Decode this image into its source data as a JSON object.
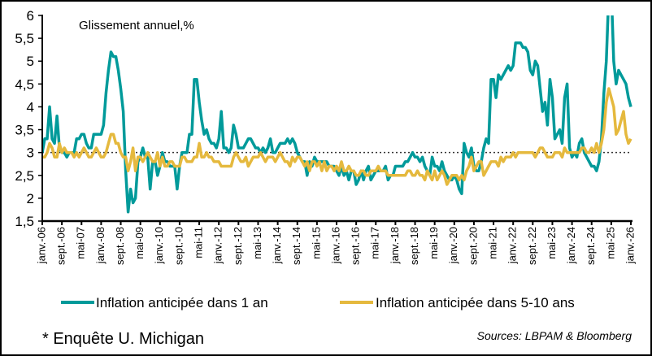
{
  "chart_data": {
    "type": "line",
    "title": "Glissement annuel,%",
    "xlabel": "",
    "ylabel": "",
    "ylim": [
      1.5,
      6
    ],
    "yticks": [
      "1,5",
      "2",
      "2,5",
      "3",
      "3,5",
      "4",
      "4,5",
      "5",
      "5,5",
      "6"
    ],
    "xlim": [
      "2006-01",
      "2026-01"
    ],
    "xtick_labels": [
      "janv.-06",
      "sept.-06",
      "mai-07",
      "janv.-08",
      "sept.-08",
      "mai-09",
      "janv.-10",
      "sept.-10",
      "mai-11",
      "janv.-12",
      "sept.-12",
      "mai-13",
      "janv.-14",
      "sept.-14",
      "mai-15",
      "janv.-16",
      "sept.-16",
      "mai-17",
      "janv.-18",
      "sept.-18",
      "mai-19",
      "janv.-20",
      "sept.-20",
      "mai-21",
      "janv.-22",
      "sept.-22",
      "mai-23",
      "janv.-24",
      "sept.-24",
      "mai-25",
      "janv.-26"
    ],
    "reference_line": 3,
    "grid": false,
    "legend_position": "bottom",
    "frequency": "monthly",
    "series": [
      {
        "name": "Inflation anticipée dans 1 an",
        "color": "#009a9a",
        "values": [
          3.0,
          3.3,
          3.3,
          4.0,
          3.3,
          3.2,
          3.8,
          3.1,
          3.0,
          3.0,
          2.9,
          3.0,
          3.0,
          3.0,
          3.3,
          3.3,
          3.4,
          3.4,
          3.2,
          3.1,
          3.1,
          3.4,
          3.4,
          3.4,
          3.4,
          3.6,
          4.3,
          4.8,
          5.2,
          5.1,
          5.1,
          4.8,
          4.4,
          3.9,
          2.6,
          1.7,
          2.2,
          1.9,
          2.0,
          2.8,
          2.9,
          3.1,
          2.9,
          2.9,
          2.2,
          2.8,
          2.8,
          2.5,
          2.7,
          3.0,
          2.8,
          2.8,
          2.7,
          2.7,
          2.7,
          2.2,
          2.7,
          3.0,
          3.0,
          3.0,
          3.4,
          3.4,
          4.6,
          4.6,
          4.1,
          3.7,
          3.4,
          3.5,
          3.3,
          3.2,
          3.2,
          3.1,
          3.3,
          3.9,
          3.1,
          3.1,
          3.0,
          3.1,
          3.6,
          3.4,
          3.1,
          3.1,
          3.1,
          3.2,
          3.3,
          3.3,
          3.2,
          3.1,
          3.1,
          3.0,
          3.1,
          3.0,
          3.1,
          3.3,
          3.0,
          3.0,
          3.1,
          3.2,
          3.2,
          3.2,
          3.3,
          3.2,
          3.3,
          3.2,
          3.0,
          2.9,
          2.8,
          2.8,
          2.5,
          2.8,
          2.7,
          2.9,
          2.8,
          2.8,
          2.8,
          2.8,
          2.8,
          2.7,
          2.7,
          2.7,
          2.6,
          2.5,
          2.7,
          2.5,
          2.6,
          2.4,
          2.6,
          2.6,
          2.3,
          2.4,
          2.6,
          2.4,
          2.6,
          2.7,
          2.4,
          2.5,
          2.6,
          2.6,
          2.6,
          2.6,
          2.7,
          2.4,
          2.5,
          2.5,
          2.7,
          2.7,
          2.7,
          2.7,
          2.8,
          2.8,
          2.9,
          3.0,
          2.9,
          2.9,
          2.8,
          2.9,
          2.7,
          2.6,
          2.5,
          2.9,
          2.7,
          2.7,
          2.6,
          2.8,
          2.6,
          2.5,
          2.4,
          2.4,
          2.5,
          2.4,
          2.2,
          2.1,
          3.2,
          3.0,
          2.9,
          3.1,
          2.7,
          2.6,
          2.6,
          2.8,
          3.1,
          3.3,
          3.2,
          4.6,
          4.6,
          4.2,
          4.7,
          4.6,
          4.7,
          4.8,
          4.9,
          4.8,
          4.9,
          5.4,
          5.4,
          5.4,
          5.3,
          5.3,
          5.2,
          4.8,
          4.7,
          5.0,
          4.9,
          4.4,
          3.9,
          4.1,
          3.6,
          4.6,
          4.2,
          3.3,
          3.4,
          3.5,
          3.2,
          4.2,
          4.5,
          3.1,
          2.9,
          3.0,
          2.9,
          3.2,
          3.3,
          3.0,
          2.9,
          2.8,
          2.7,
          2.7,
          2.6,
          2.8,
          3.3,
          4.3,
          5.0,
          6.5,
          6.6,
          5.0,
          4.5,
          4.8,
          4.7,
          4.6,
          4.5,
          4.2,
          4.0
        ]
      },
      {
        "name": "Inflation anticipée dans 5-10 ans",
        "color": "#e5b93e",
        "values": [
          2.9,
          2.9,
          3.0,
          3.2,
          3.1,
          2.9,
          2.9,
          3.2,
          3.0,
          3.1,
          3.0,
          3.0,
          3.0,
          2.9,
          3.0,
          2.9,
          3.0,
          3.1,
          3.0,
          2.9,
          2.9,
          3.0,
          3.1,
          3.0,
          2.9,
          2.9,
          3.0,
          3.2,
          3.4,
          3.4,
          3.2,
          3.2,
          3.0,
          2.9,
          2.9,
          2.6,
          2.8,
          3.1,
          2.6,
          2.9,
          2.9,
          2.8,
          2.9,
          3.0,
          2.9,
          2.8,
          2.8,
          3.0,
          2.7,
          2.9,
          2.7,
          2.7,
          2.8,
          2.8,
          2.7,
          2.7,
          2.7,
          2.9,
          2.9,
          2.8,
          2.8,
          2.8,
          2.9,
          2.9,
          3.2,
          2.9,
          2.9,
          3.0,
          2.9,
          2.9,
          2.8,
          2.8,
          2.8,
          2.7,
          2.7,
          2.7,
          2.7,
          2.7,
          2.9,
          3.0,
          2.9,
          2.8,
          2.8,
          2.9,
          2.7,
          2.8,
          2.9,
          2.9,
          2.9,
          3.0,
          2.9,
          2.8,
          2.9,
          2.9,
          2.9,
          2.8,
          2.9,
          3.0,
          2.9,
          2.8,
          2.8,
          2.7,
          2.9,
          2.8,
          2.9,
          2.9,
          2.8,
          2.7,
          2.8,
          2.6,
          2.8,
          2.8,
          2.7,
          2.8,
          2.6,
          2.8,
          2.6,
          2.7,
          2.7,
          2.6,
          2.7,
          2.6,
          2.8,
          2.6,
          2.6,
          2.7,
          2.6,
          2.6,
          2.5,
          2.5,
          2.6,
          2.6,
          2.5,
          2.5,
          2.6,
          2.6,
          2.6,
          2.7,
          2.6,
          2.6,
          2.6,
          2.5,
          2.5,
          2.5,
          2.5,
          2.5,
          2.5,
          2.5,
          2.5,
          2.6,
          2.6,
          2.5,
          2.5,
          2.6,
          2.5,
          2.5,
          2.4,
          2.6,
          2.5,
          2.4,
          2.6,
          2.4,
          2.5,
          2.6,
          2.5,
          2.3,
          2.4,
          2.5,
          2.5,
          2.5,
          2.4,
          2.5,
          2.4,
          2.6,
          2.7,
          2.9,
          2.6,
          2.7,
          2.8,
          2.8,
          2.5,
          2.6,
          2.7,
          2.8,
          2.8,
          2.8,
          2.7,
          2.9,
          2.8,
          2.9,
          2.9,
          2.9,
          3.0,
          2.9,
          3.0,
          3.0,
          3.0,
          3.0,
          3.0,
          3.0,
          3.0,
          2.9,
          3.0,
          3.1,
          3.1,
          3.0,
          2.9,
          2.9,
          2.9,
          3.0,
          3.0,
          3.0,
          2.9,
          3.1,
          3.0,
          3.0,
          3.0,
          3.0,
          3.0,
          3.0,
          3.1,
          3.1,
          3.0,
          3.0,
          3.1,
          3.0,
          3.2,
          3.0,
          3.2,
          3.5,
          4.1,
          4.4,
          4.2,
          4.0,
          3.4,
          3.5,
          3.7,
          3.9,
          3.4,
          3.2,
          3.3
        ]
      }
    ]
  },
  "footnote": "* Enquête U. Michigan",
  "sources": "Sources: LBPAM & Bloomberg"
}
